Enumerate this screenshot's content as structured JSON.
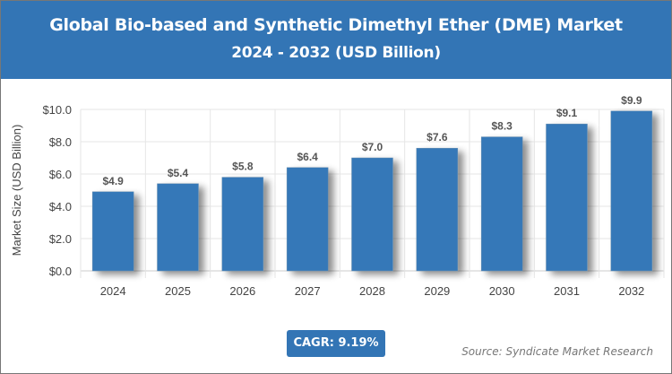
{
  "header": {
    "title": "Global Bio-based and Synthetic Dimethyl Ether (DME) Market",
    "subtitle": "2024 - 2032 (USD Billion)"
  },
  "cagr_label": "CAGR: 9.19%",
  "source": "Source: Syndicate Market Research",
  "colors": {
    "header": "#3375b5",
    "bar": "#3578b8"
  },
  "chart_data": {
    "type": "bar",
    "title": "Global Bio-based and Synthetic Dimethyl Ether (DME) Market",
    "subtitle": "2024 - 2032 (USD Billion)",
    "xlabel": "",
    "ylabel": "Market Size (USD Billion)",
    "categories": [
      "2024",
      "2025",
      "2026",
      "2027",
      "2028",
      "2029",
      "2030",
      "2031",
      "2032"
    ],
    "values": [
      4.9,
      5.4,
      5.8,
      6.4,
      7.0,
      7.6,
      8.3,
      9.1,
      9.9
    ],
    "data_labels": [
      "$4.9",
      "$5.4",
      "$5.8",
      "$6.4",
      "$7.0",
      "$7.6",
      "$8.3",
      "$9.1",
      "$9.9"
    ],
    "ylim": [
      0,
      10
    ],
    "yticks": [
      "$0.0",
      "$2.0",
      "$4.0",
      "$6.0",
      "$8.0",
      "$10.0"
    ],
    "ytick_values": [
      0,
      2,
      4,
      6,
      8,
      10
    ],
    "grid": true,
    "legend": "none"
  }
}
